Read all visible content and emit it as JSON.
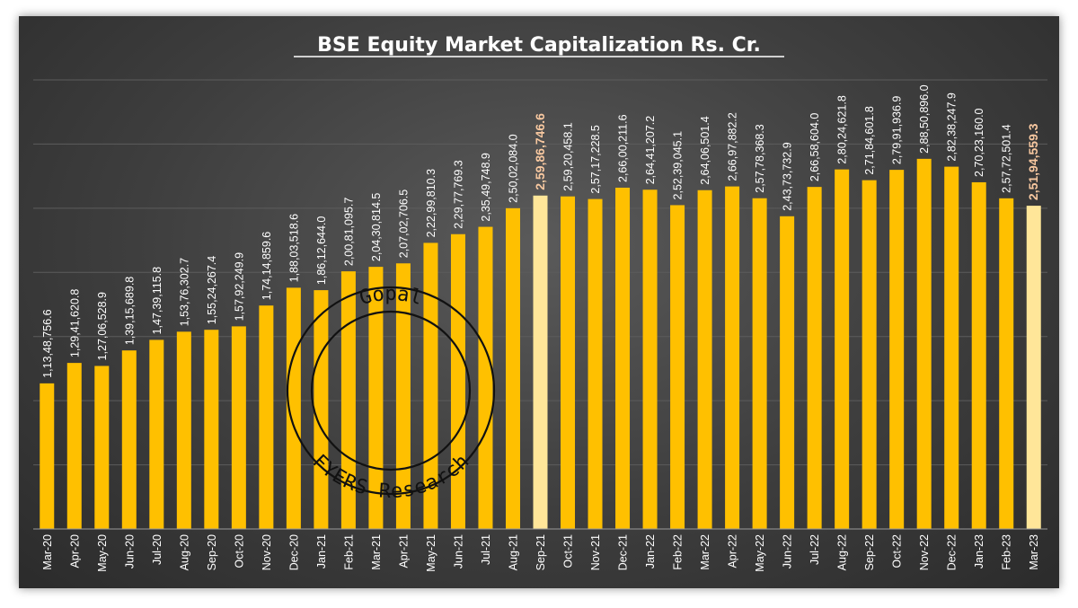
{
  "chart_data": {
    "type": "bar",
    "title": "BSE Equity Market Capitalization Rs. Cr.",
    "xlabel": "",
    "ylabel": "",
    "ylim": [
      0,
      35000000
    ],
    "grid": true,
    "categories": [
      "Mar-20",
      "Apr-20",
      "May-20",
      "Jun-20",
      "Jul-20",
      "Aug-20",
      "Sep-20",
      "Oct-20",
      "Nov-20",
      "Dec-20",
      "Jan-21",
      "Feb-21",
      "Mar-21",
      "Apr-21",
      "May-21",
      "Jun-21",
      "Jul-21",
      "Aug-21",
      "Sep-21",
      "Oct-21",
      "Nov-21",
      "Dec-21",
      "Jan-22",
      "Feb-22",
      "Mar-22",
      "Apr-22",
      "May-22",
      "Jun-22",
      "Jul-22",
      "Aug-22",
      "Sep-22",
      "Oct-22",
      "Nov-22",
      "Dec-22",
      "Jan-23",
      "Feb-23",
      "Mar-23"
    ],
    "values": [
      11348756.6,
      12941620.8,
      12706528.9,
      13915689.8,
      14739115.8,
      15376302.7,
      15524267.4,
      15792249.9,
      17414859.6,
      18803518.6,
      18612644.0,
      20081095.7,
      20430814.5,
      20702706.5,
      22299810.3,
      22977769.3,
      23549748.9,
      25002084.0,
      25986746.6,
      25920458.1,
      25717228.5,
      26600211.6,
      26441207.2,
      25239045.1,
      26406501.4,
      26697882.2,
      25778368.3,
      24373732.9,
      26658604.0,
      28024621.8,
      27184601.8,
      27991936.9,
      28850896.0,
      28238247.9,
      27023160.0,
      25772501.4,
      25194559.3
    ],
    "labels": [
      "1,13,48,756.6",
      "1,29,41,620.8",
      "1,27,06,528.9",
      "1,39,15,689.8",
      "1,47,39,115.8",
      "1,53,76,302.7",
      "1,55,24,267.4",
      "1,57,92,249.9",
      "1,74,14,859.6",
      "1,88,03,518.6",
      "1,86,12,644.0",
      "2,00,81,095.7",
      "2,04,30,814.5",
      "2,07,02,706.5",
      "2,22,99,810.3",
      "2,29,77,769.3",
      "2,35,49,748.9",
      "2,50,02,084.0",
      "2,59,86,746.6",
      "2,59,20,458.1",
      "2,57,17,228.5",
      "2,66,00,211.6",
      "2,64,41,207.2",
      "2,52,39,045.1",
      "2,64,06,501.4",
      "2,66,97,882.2",
      "2,57,78,368.3",
      "2,43,73,732.9",
      "2,66,58,604.0",
      "2,80,24,621.8",
      "2,71,84,601.8",
      "2,79,91,936.9",
      "2,88,50,896.0",
      "2,82,38,247.9",
      "2,70,23,160.0",
      "2,57,72,501.4",
      "2,51,94,559.3"
    ],
    "highlighted": [
      "Sep-21",
      "Mar-23"
    ],
    "colors": {
      "bar": "#ffc000",
      "highlight_bar": "#ffe699",
      "highlight_label": "#f8c8a0",
      "background": "#3e3e3e",
      "grid": "#5c5c5c"
    }
  },
  "watermark": {
    "top_text": "Gopal",
    "bottom_text": "FYERS Research"
  }
}
